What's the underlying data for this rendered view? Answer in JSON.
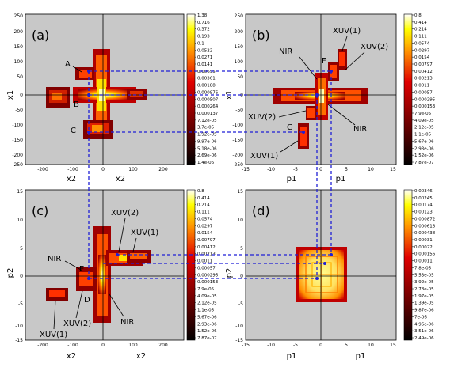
{
  "colors": {
    "background": "#c8c8c8",
    "guide_lines": "#1f1fd6",
    "axes": "#000000",
    "blob_hot": "#ffff80",
    "blob_mid": "#ff8000",
    "blob_dark": "#c00000"
  },
  "panels": {
    "a": {
      "label": "(a)",
      "x_ticks": [
        "-200",
        "-100",
        "0",
        "100",
        "200"
      ],
      "y_ticks": [
        "250",
        "200",
        "150",
        "100",
        "50",
        "0",
        "-50",
        "-100",
        "-150",
        "-200",
        "-250"
      ],
      "x_labels": [
        "x2",
        "x2"
      ],
      "y_label": "x1",
      "annotations": [
        "A",
        "B",
        "C"
      ],
      "colorbar": [
        "1.38",
        "0.716",
        "0.372",
        "0.193",
        "0.1",
        "0.0522",
        "0.0271",
        "0.0141",
        "0.00695",
        "0.00361",
        "0.00188",
        "0.000976",
        "0.000507",
        "0.000264",
        "0.000137",
        "7.12e-05",
        "3.7e-05",
        "1.92e-05",
        "9.97e-06",
        "5.18e-06",
        "2.69e-06",
        "1.4e-06"
      ]
    },
    "b": {
      "label": "(b)",
      "x_ticks": [
        "-15",
        "-10",
        "-5",
        "0",
        "5",
        "10",
        "15"
      ],
      "y_ticks": [
        "250",
        "200",
        "150",
        "100",
        "50",
        "0",
        "-50",
        "-100",
        "-150",
        "-200",
        "-250"
      ],
      "x_labels": [
        "p1",
        "p1"
      ],
      "y_label": "x1",
      "annotations": [
        "NIR",
        "F",
        "XUV(1)",
        "XUV(2)",
        "XUV(2)",
        "NIR",
        "G",
        "XUV(1)"
      ],
      "colorbar": [
        "0.8",
        "0.414",
        "0.214",
        "0.111",
        "0.0574",
        "0.0297",
        "0.0154",
        "0.00797",
        "0.00412",
        "0.00213",
        "0.0011",
        "0.00057",
        "0.000295",
        "0.000153",
        "7.9e-05",
        "4.09e-05",
        "2.12e-05",
        "1.1e-05",
        "5.67e-06",
        "2.93e-06",
        "1.52e-06",
        "7.87e-07"
      ]
    },
    "c": {
      "label": "(c)",
      "x_ticks": [
        "-200",
        "-100",
        "0",
        "100",
        "200"
      ],
      "y_ticks": [
        "15",
        "10",
        "5",
        "0",
        "-5",
        "-10",
        "-15"
      ],
      "x_labels": [
        "x2",
        "x2"
      ],
      "y_label": "p2",
      "annotations": [
        "XUV(2)",
        "XUV(1)",
        "NIR",
        "E",
        "D",
        "NIR",
        "XUV(2)",
        "XUV(1)"
      ],
      "colorbar": [
        "0.8",
        "0.414",
        "0.214",
        "0.111",
        "0.0574",
        "0.0297",
        "0.0154",
        "0.00797",
        "0.00412",
        "0.00213",
        "0.0011",
        "0.00057",
        "0.000295",
        "0.000153",
        "7.9e-05",
        "4.09e-05",
        "2.12e-05",
        "1.1e-05",
        "5.67e-06",
        "2.93e-06",
        "1.52e-06",
        "7.87e-07"
      ]
    },
    "d": {
      "label": "(d)",
      "x_ticks": [
        "-15",
        "-10",
        "-5",
        "0",
        "5",
        "10",
        "15"
      ],
      "y_ticks": [
        "15",
        "10",
        "5",
        "0",
        "-5",
        "-10",
        "-15"
      ],
      "x_labels": [
        "p1",
        "p1"
      ],
      "y_label": "p2",
      "annotations": [],
      "colorbar": [
        "0.00346",
        "0.00245",
        "0.00174",
        "0.00123",
        "0.000872",
        "0.000618",
        "0.000438",
        "0.00031",
        "0.00022",
        "0.000156",
        "0.00011",
        "7.8e-05",
        "5.53e-05",
        "3.92e-05",
        "2.78e-05",
        "1.97e-05",
        "1.39e-05",
        "9.87e-06",
        "7e-06",
        "4.96e-06",
        "3.51e-06",
        "2.49e-06"
      ]
    }
  }
}
